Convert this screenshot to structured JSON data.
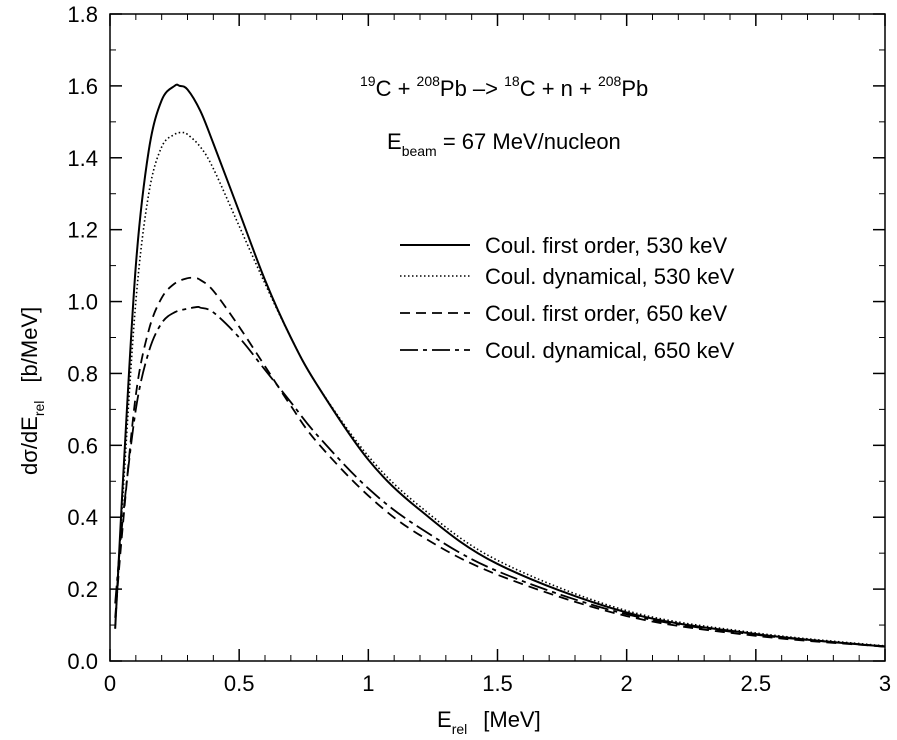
{
  "chart_data": {
    "type": "line",
    "xlabel": {
      "main": "E",
      "sub": "rel",
      "unit": "[MeV]"
    },
    "ylabel": {
      "main": "dσ/dE",
      "sub": "rel",
      "unit": "[b/MeV]"
    },
    "xlim": [
      0,
      3
    ],
    "ylim": [
      0,
      1.8
    ],
    "x_ticks": [
      0,
      0.5,
      1,
      1.5,
      2,
      2.5,
      3
    ],
    "x_tick_labels": [
      "0",
      "0.5",
      "1",
      "1.5",
      "2",
      "2.5",
      "3"
    ],
    "y_ticks": [
      0,
      0.2,
      0.4,
      0.6,
      0.8,
      1.0,
      1.2,
      1.4,
      1.6,
      1.8
    ],
    "y_tick_labels": [
      "0.0",
      "0.2",
      "0.4",
      "0.6",
      "0.8",
      "1.0",
      "1.2",
      "1.4",
      "1.6",
      "1.8"
    ],
    "grid": false,
    "legend_position": "right",
    "annotations": {
      "reaction": {
        "p1": "19",
        "t1": "C + ",
        "p2": "208",
        "t2": "Pb –> ",
        "p3": "18",
        "t3": "C + n + ",
        "p4": "208",
        "t4": "Pb"
      },
      "beam": {
        "main": "E",
        "sub": "beam",
        "rest": " = 67 MeV/nucleon"
      }
    },
    "series": [
      {
        "name": "Coul. first order, 530 keV",
        "style": "solid",
        "x": [
          0.02,
          0.05,
          0.1,
          0.15,
          0.2,
          0.25,
          0.27,
          0.3,
          0.35,
          0.4,
          0.5,
          0.6,
          0.7,
          0.8,
          1.0,
          1.2,
          1.5,
          2.0,
          2.5,
          3.0
        ],
        "y": [
          0.09,
          0.5,
          1.1,
          1.42,
          1.56,
          1.6,
          1.6,
          1.59,
          1.53,
          1.44,
          1.25,
          1.06,
          0.9,
          0.77,
          0.56,
          0.42,
          0.27,
          0.135,
          0.075,
          0.04
        ]
      },
      {
        "name": "Coul. dynamical, 530 keV",
        "style": "dotted",
        "x": [
          0.02,
          0.05,
          0.1,
          0.15,
          0.2,
          0.25,
          0.28,
          0.3,
          0.35,
          0.4,
          0.5,
          0.6,
          0.7,
          0.8,
          1.0,
          1.2,
          1.5,
          2.0,
          2.5,
          3.0
        ],
        "y": [
          0.09,
          0.46,
          1.0,
          1.3,
          1.43,
          1.465,
          1.47,
          1.465,
          1.43,
          1.37,
          1.21,
          1.05,
          0.9,
          0.77,
          0.57,
          0.43,
          0.28,
          0.14,
          0.078,
          0.042
        ]
      },
      {
        "name": "Coul. first order, 650 keV",
        "style": "dashed",
        "x": [
          0.02,
          0.05,
          0.1,
          0.15,
          0.2,
          0.25,
          0.3,
          0.33,
          0.35,
          0.4,
          0.5,
          0.6,
          0.7,
          0.8,
          1.0,
          1.2,
          1.5,
          2.0,
          2.5,
          3.0
        ],
        "y": [
          0.12,
          0.38,
          0.74,
          0.92,
          1.01,
          1.05,
          1.065,
          1.065,
          1.06,
          1.03,
          0.93,
          0.82,
          0.71,
          0.61,
          0.46,
          0.35,
          0.24,
          0.125,
          0.07,
          0.04
        ]
      },
      {
        "name": "Coul. dynamical, 650 keV",
        "style": "dashdot",
        "x": [
          0.02,
          0.05,
          0.1,
          0.15,
          0.2,
          0.25,
          0.3,
          0.34,
          0.35,
          0.4,
          0.5,
          0.6,
          0.7,
          0.8,
          1.0,
          1.2,
          1.5,
          2.0,
          2.5,
          3.0
        ],
        "y": [
          0.16,
          0.4,
          0.7,
          0.86,
          0.94,
          0.97,
          0.98,
          0.985,
          0.983,
          0.97,
          0.9,
          0.81,
          0.72,
          0.63,
          0.48,
          0.37,
          0.25,
          0.13,
          0.073,
          0.041
        ]
      }
    ]
  }
}
